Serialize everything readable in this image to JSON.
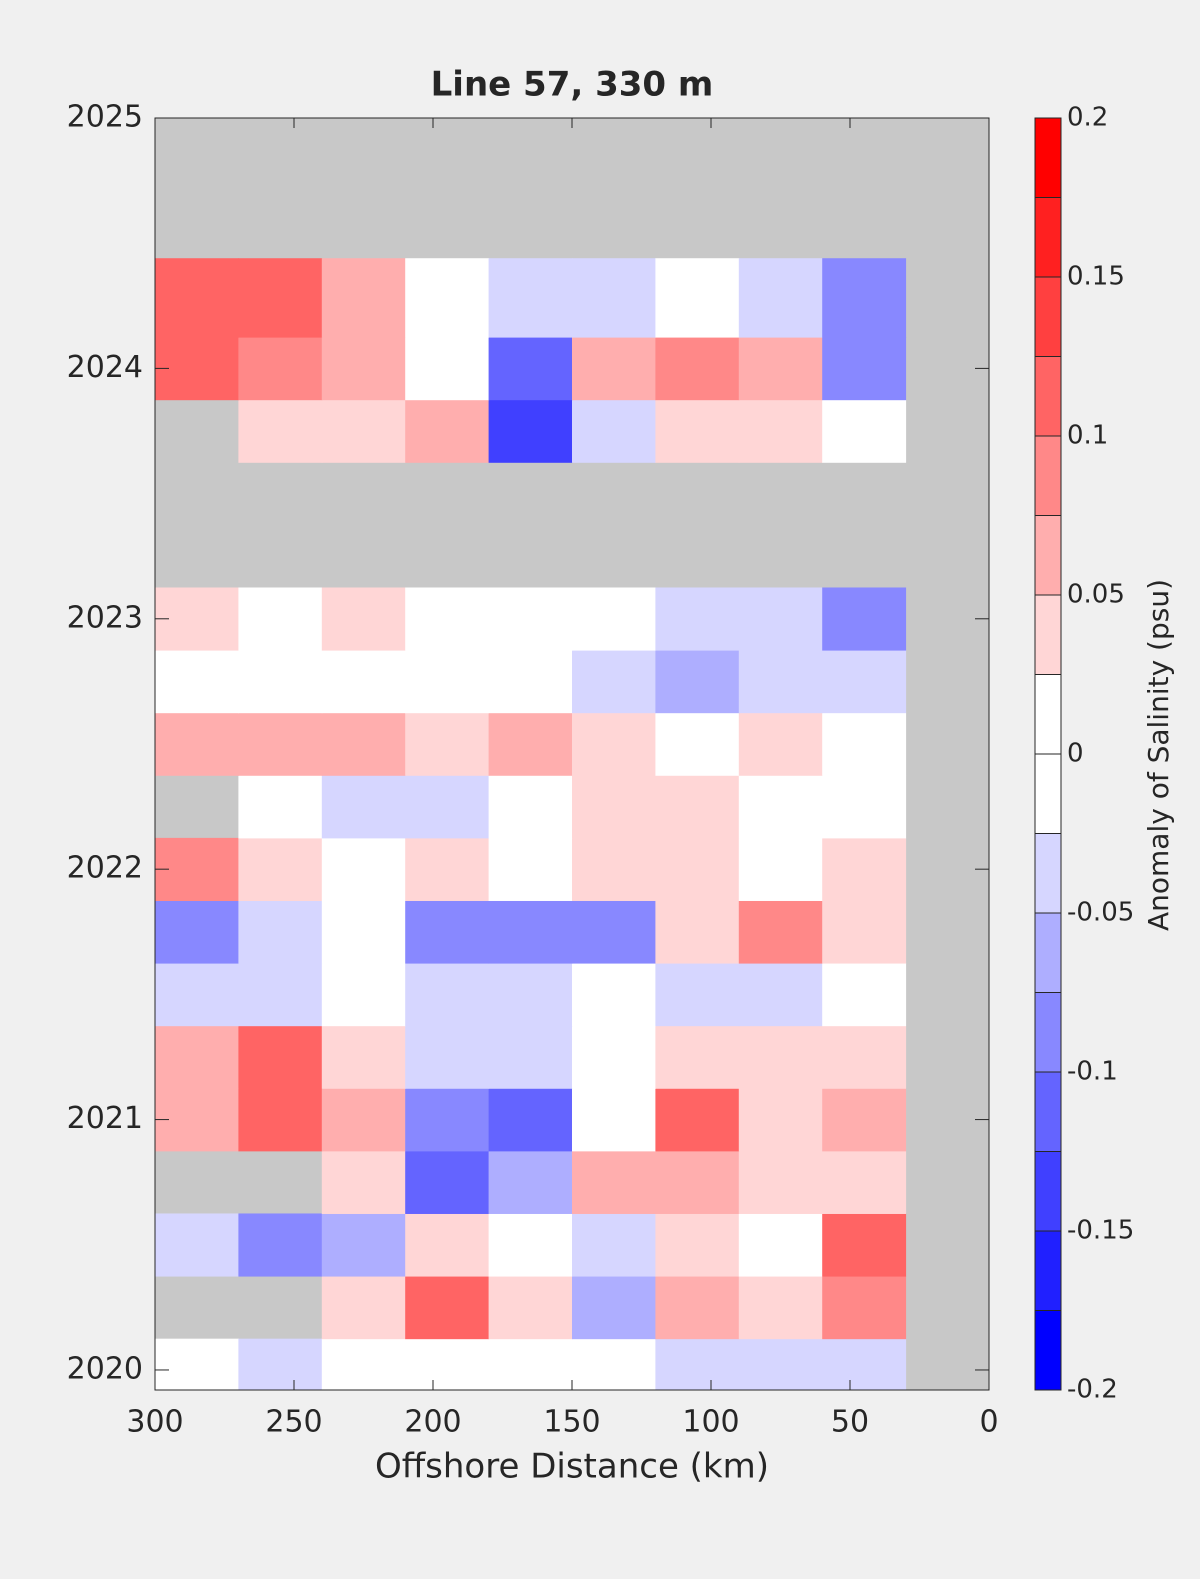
{
  "chart_data": {
    "type": "contourf",
    "title": "Line 57, 330 m",
    "xlabel": "Offshore Distance (km)",
    "colorbar_label": "Anomaly of Salinity (psu)",
    "xlim": [
      300,
      0
    ],
    "xticks": [
      300,
      250,
      200,
      150,
      100,
      50,
      0
    ],
    "ylim": [
      2019.92,
      2025
    ],
    "yticks": [
      2020,
      2021,
      2022,
      2023,
      2024,
      2025
    ],
    "missing_color": "#c8c8c8",
    "clim": [
      -0.2,
      0.2
    ],
    "cticks": [
      -0.2,
      -0.15,
      -0.1,
      -0.05,
      0,
      0.05,
      0.1,
      0.15,
      0.2
    ],
    "levels": [
      -0.2,
      -0.175,
      -0.15,
      -0.125,
      -0.1,
      -0.075,
      -0.05,
      -0.025,
      0,
      0.025,
      0.05,
      0.075,
      0.1,
      0.125,
      0.15,
      0.175,
      0.2
    ],
    "colors": [
      "#0000ff",
      "#2020ff",
      "#4040ff",
      "#6464ff",
      "#8888ff",
      "#aeaeff",
      "#d6d6ff",
      "#ffffff",
      "#ffffff",
      "#ffd6d6",
      "#ffaeae",
      "#ff8888",
      "#ff6464",
      "#ff4040",
      "#ff2020",
      "#ff0000"
    ],
    "x_edges": [
      300,
      270,
      240,
      210,
      180,
      150,
      120,
      90,
      60,
      30
    ],
    "y_edges": [
      2019.92,
      2020.125,
      2020.375,
      2020.625,
      2020.875,
      2021.125,
      2021.375,
      2021.625,
      2021.875,
      2022.125,
      2022.375,
      2022.625,
      2022.875,
      2023.125,
      2023.375,
      2023.625,
      2023.875,
      2024.125,
      2024.44
    ],
    "z": [
      [
        0,
        -0.03,
        0,
        0,
        0,
        0,
        -0.03,
        -0.03,
        -0.03
      ],
      [
        null,
        null,
        0.04,
        0.12,
        0.03,
        -0.07,
        0.05,
        0.03,
        0.08
      ],
      [
        -0.05,
        -0.08,
        -0.06,
        0.03,
        0,
        -0.05,
        0.04,
        0,
        0.1
      ],
      [
        null,
        null,
        0.03,
        -0.12,
        -0.06,
        0.05,
        0.05,
        0.03,
        0.04
      ],
      [
        0.06,
        0.1,
        0.05,
        -0.1,
        -0.12,
        0.02,
        0.12,
        0.03,
        0.07
      ],
      [
        0.05,
        0.12,
        0.03,
        -0.03,
        -0.05,
        0,
        0.03,
        0.03,
        0.03
      ],
      [
        -0.03,
        -0.03,
        0,
        -0.05,
        -0.03,
        0,
        -0.04,
        -0.05,
        0
      ],
      [
        -0.08,
        -0.04,
        0,
        -0.08,
        -0.1,
        -0.1,
        0.04,
        0.08,
        0.04
      ],
      [
        0.08,
        0.04,
        0,
        0.03,
        0,
        0.03,
        0.03,
        0,
        0.03
      ],
      [
        null,
        0,
        -0.04,
        -0.03,
        0,
        0.04,
        0.03,
        0,
        0
      ],
      [
        0.05,
        0.07,
        0.05,
        0.03,
        0.07,
        0.04,
        0,
        0.03,
        0
      ],
      [
        0,
        0,
        0,
        0,
        0,
        -0.03,
        -0.06,
        -0.04,
        -0.03
      ],
      [
        0.03,
        0,
        0.03,
        0,
        0,
        0,
        -0.03,
        -0.05,
        -0.08
      ],
      [
        null,
        null,
        null,
        null,
        null,
        null,
        null,
        null,
        null
      ],
      [
        null,
        null,
        null,
        null,
        null,
        null,
        null,
        null,
        null
      ],
      [
        null,
        0.03,
        0.04,
        0.05,
        -0.13,
        -0.04,
        0.03,
        0.03,
        0
      ],
      [
        0.12,
        0.08,
        0.05,
        0,
        -0.12,
        0.05,
        0.08,
        0.05,
        -0.08
      ],
      [
        0.1,
        0.1,
        0.07,
        0,
        -0.03,
        -0.03,
        0,
        -0.05,
        -0.08
      ]
    ]
  }
}
